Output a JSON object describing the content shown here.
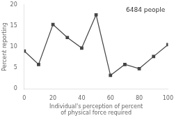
{
  "chart_data": {
    "type": "line",
    "x": [
      0,
      10,
      20,
      30,
      40,
      50,
      60,
      70,
      80,
      90,
      100
    ],
    "values": [
      9.0,
      5.8,
      15.3,
      12.2,
      9.7,
      17.6,
      3.2,
      5.8,
      4.8,
      7.7,
      10.5
    ],
    "annotation": "6484 people",
    "xlabel": "Individual's perception of percent\nof physical force required",
    "ylabel": "Percent reporting",
    "xlim": [
      0,
      100
    ],
    "ylim": [
      0,
      20
    ],
    "xticks": [
      0,
      20,
      40,
      60,
      80,
      100
    ],
    "yticks": [
      0,
      5,
      10,
      15,
      20
    ],
    "color": "#444444",
    "marker": "square",
    "grid": false
  }
}
